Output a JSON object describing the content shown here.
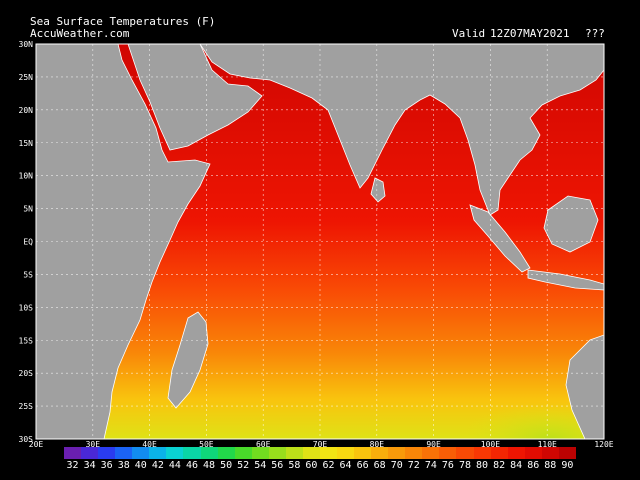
{
  "header": {
    "title": "Sea Surface Temperatures (F)",
    "source": "AccuWeather.com",
    "valid_label": "Valid",
    "valid_time": "12Z07MAY2021",
    "flag": "???"
  },
  "axes": {
    "lat_labels": [
      "30N",
      "25N",
      "20N",
      "15N",
      "10N",
      "5N",
      "EQ",
      "5S",
      "10S",
      "15S",
      "20S",
      "25S",
      "30S"
    ],
    "lon_labels": [
      "20E",
      "30E",
      "40E",
      "50E",
      "60E",
      "70E",
      "80E",
      "90E",
      "100E",
      "110E",
      "120E"
    ]
  },
  "legend": {
    "values": [
      "32",
      "34",
      "36",
      "38",
      "40",
      "42",
      "44",
      "46",
      "48",
      "50",
      "52",
      "54",
      "56",
      "58",
      "60",
      "62",
      "64",
      "66",
      "68",
      "70",
      "72",
      "74",
      "76",
      "78",
      "80",
      "82",
      "84",
      "86",
      "88",
      "90"
    ],
    "colors": [
      "#6a1fb0",
      "#4a28d6",
      "#2a3cf0",
      "#1b63f5",
      "#128cf0",
      "#0bb3e8",
      "#0ad2d2",
      "#0ad6a6",
      "#0fd77a",
      "#22d84a",
      "#49da2a",
      "#72dc20",
      "#98de1c",
      "#bde019",
      "#dfe216",
      "#f2e414",
      "#f8d811",
      "#f9c40e",
      "#f9ae0c",
      "#f99a0a",
      "#f98608",
      "#f97207",
      "#f95e06",
      "#f94a05",
      "#f93804",
      "#f42603",
      "#ee1502",
      "#e20c02",
      "#d00602",
      "#bb0202"
    ]
  }
}
